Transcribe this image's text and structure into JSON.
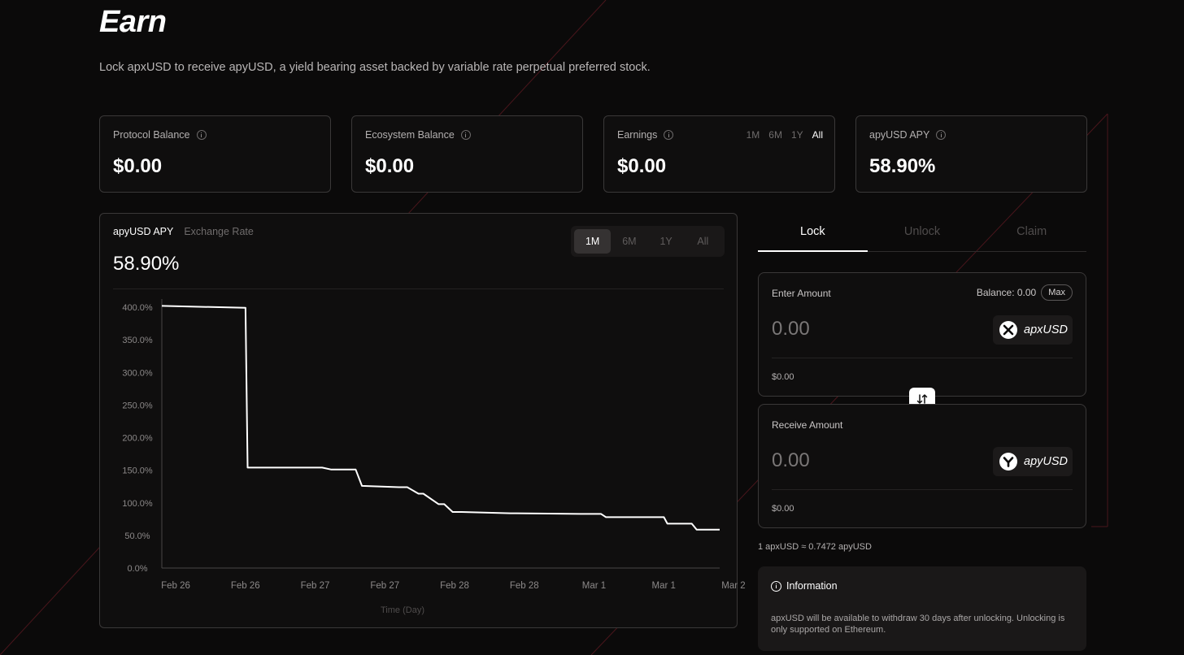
{
  "page": {
    "title": "Earn",
    "subtitle": "Lock apxUSD to receive apyUSD, a yield bearing asset backed by variable rate perpetual preferred stock."
  },
  "stats": [
    {
      "label": "Protocol Balance",
      "value": "$0.00"
    },
    {
      "label": "Ecosystem Balance",
      "value": "$0.00"
    },
    {
      "label": "Earnings",
      "value": "$0.00",
      "periods": [
        "1M",
        "6M",
        "1Y",
        "All"
      ],
      "active_period": "All"
    },
    {
      "label": "apyUSD APY",
      "value": "58.90%"
    }
  ],
  "chart_card": {
    "tabs": [
      "apyUSD APY",
      "Exchange Rate"
    ],
    "active_tab": "apyUSD APY",
    "value": "58.90%",
    "ranges": [
      "1M",
      "6M",
      "1Y",
      "All"
    ],
    "active_range": "1M"
  },
  "chart_data": {
    "type": "line",
    "xlabel": "Time (Day)",
    "ylabel": "",
    "x_tick_labels": [
      "Feb 26",
      "Feb 26",
      "Feb 27",
      "Feb 27",
      "Feb 28",
      "Feb 28",
      "Mar 1",
      "Mar 1",
      "Mar 2"
    ],
    "y_tick_labels": [
      "400.0%",
      "350.0%",
      "300.0%",
      "250.0%",
      "200.0%",
      "150.0%",
      "100.0%",
      "50.0%",
      "0.0%"
    ],
    "ylim": [
      0,
      400
    ],
    "xlim": [
      0,
      8
    ],
    "grid": false,
    "line_color": "#ffffff",
    "series": [
      {
        "x": [
          0,
          1.2,
          1.23,
          2.3,
          2.43,
          2.78,
          2.87,
          3.4,
          3.52,
          3.68,
          3.75,
          3.97,
          4.05,
          4.17,
          4.3,
          5.0,
          6.0,
          6.3,
          6.37,
          7.2,
          7.25,
          7.6,
          7.67,
          8.0
        ],
        "y": [
          402,
          399,
          154,
          154,
          151,
          151,
          126,
          124,
          124,
          114,
          114,
          98,
          98,
          86,
          86,
          84,
          83,
          83,
          78,
          78,
          68,
          68,
          59,
          59
        ]
      }
    ]
  },
  "panel": {
    "tabs": [
      "Lock",
      "Unlock",
      "Claim"
    ],
    "active_tab": "Lock",
    "enter": {
      "label": "Enter Amount",
      "balance": "Balance: 0.00",
      "max_label": "Max",
      "amount": "0.00",
      "token": "apxUSD",
      "fiat": "$0.00"
    },
    "receive": {
      "label": "Receive Amount",
      "amount": "0.00",
      "token": "apyUSD",
      "fiat": "$0.00"
    },
    "rate": "1 apxUSD ≈ 0.7472 apyUSD",
    "info": {
      "title": "Information",
      "body": "apxUSD will be available to withdraw 30 days after unlocking. Unlocking is only supported on Ethereum."
    }
  },
  "colors": {
    "background": "#0b0a0a",
    "accent_line": "#5a1a22",
    "text_primary": "#ffffff",
    "text_muted": "#6f6c6c"
  },
  "icons": [
    "info-icon",
    "swap-arrows-icon",
    "apxusd-token-icon",
    "apyusd-token-icon"
  ]
}
